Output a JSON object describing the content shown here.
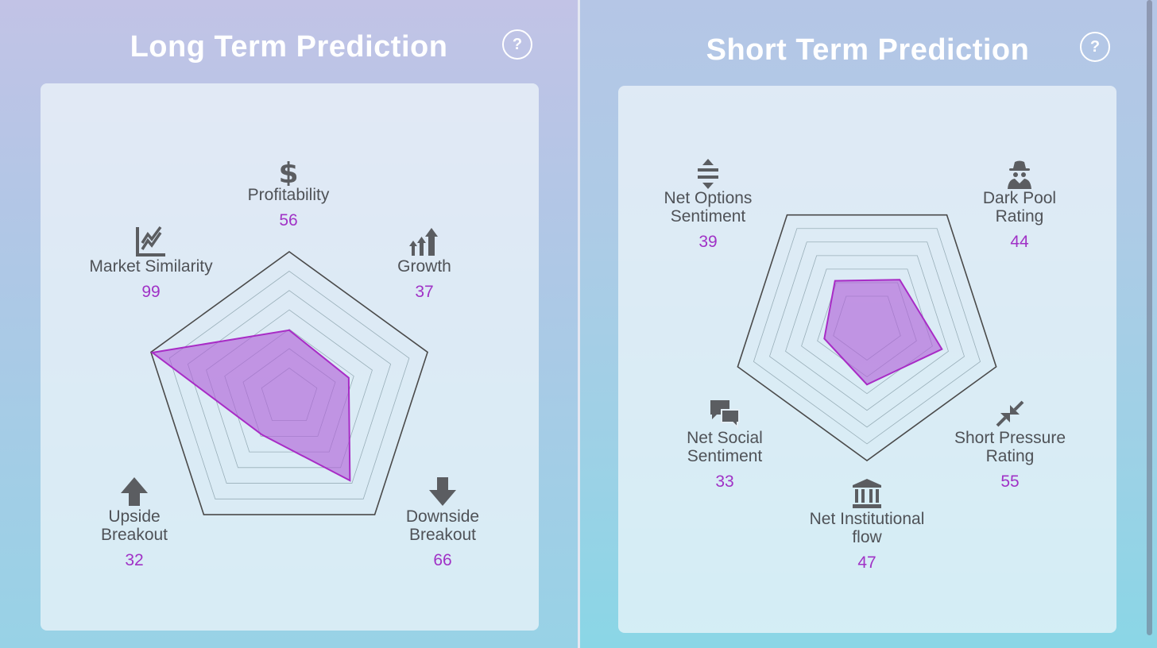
{
  "long_term": {
    "title": "Long Term Prediction",
    "help_label": "?",
    "axes": [
      {
        "label": "Profitability",
        "value": "56",
        "icon": "dollar-icon"
      },
      {
        "label": "Growth",
        "value": "37",
        "icon": "growth-arrows-icon"
      },
      {
        "label": "Downside\nBreakout",
        "value": "66",
        "icon": "arrow-down-icon"
      },
      {
        "label": "Upside\nBreakout",
        "value": "32",
        "icon": "arrow-up-icon"
      },
      {
        "label": "Market Similarity",
        "value": "99",
        "icon": "line-chart-icon"
      }
    ]
  },
  "short_term": {
    "title": "Short Term Prediction",
    "help_label": "?",
    "axes": [
      {
        "label": "Dark Pool\nRating",
        "value": "44",
        "icon": "spy-icon"
      },
      {
        "label": "Short Pressure\nRating",
        "value": "55",
        "icon": "compress-arrows-icon"
      },
      {
        "label": "Net Institutional\nflow",
        "value": "47",
        "icon": "bank-icon"
      },
      {
        "label": "Net Social\nSentiment",
        "value": "33",
        "icon": "chat-bubbles-icon"
      },
      {
        "label": "Net Options\nSentiment",
        "value": "39",
        "icon": "vertical-arrows-icon"
      }
    ]
  },
  "colors": {
    "fill": "#b060d8",
    "stroke": "#a82cc6",
    "value_text": "#a032c6",
    "label_text": "#4f5257",
    "grid": "#98aeb8",
    "outer": "#4a4a4a"
  }
}
